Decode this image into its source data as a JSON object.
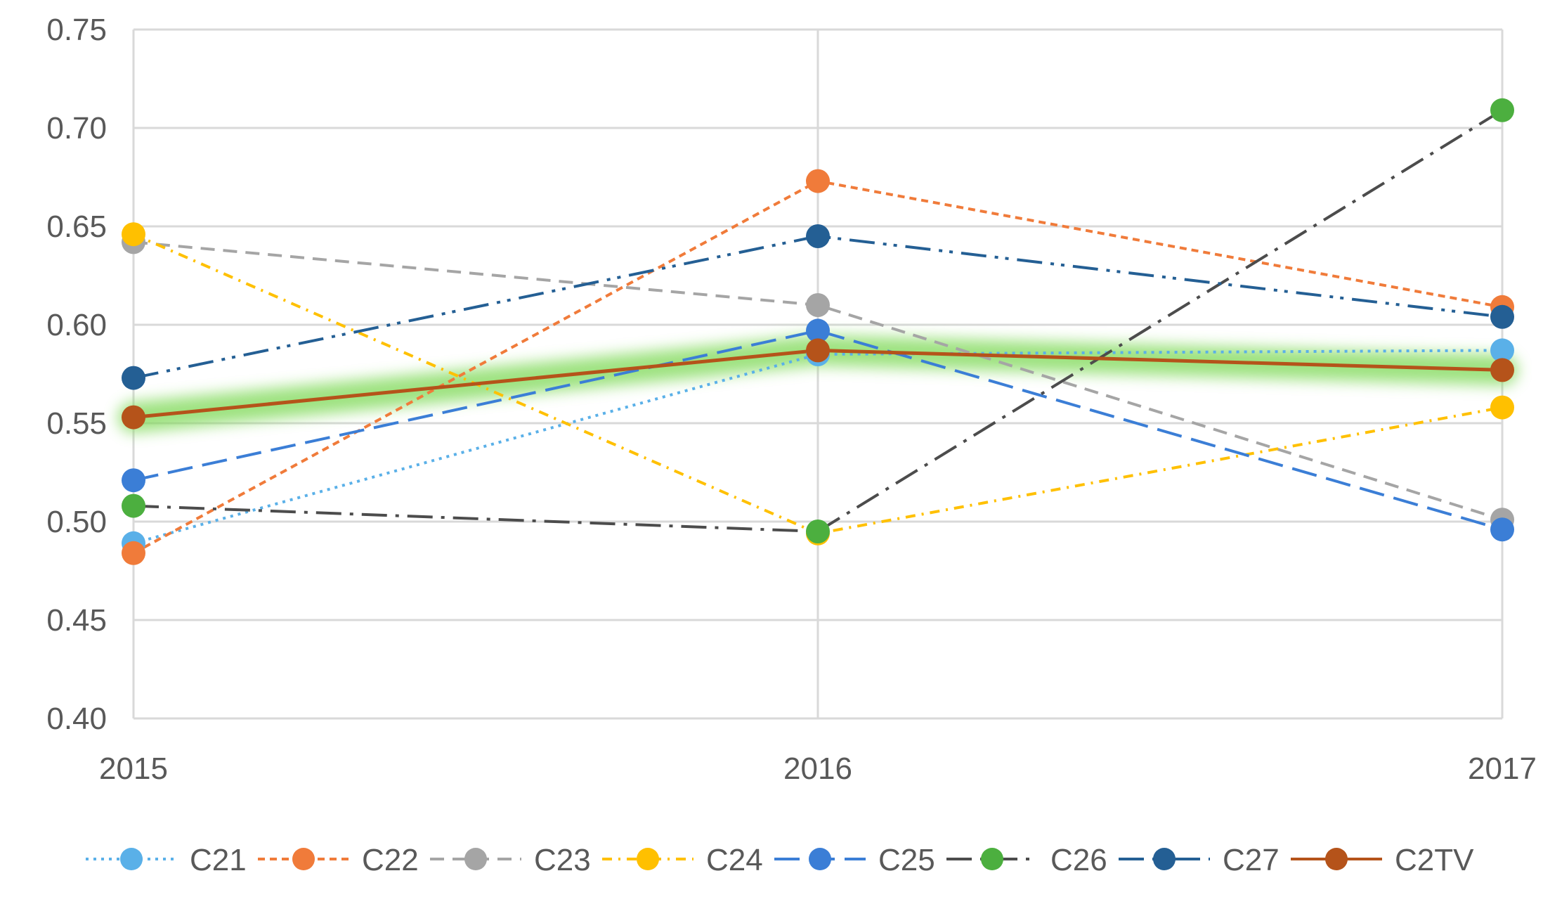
{
  "chart_data": {
    "type": "line",
    "title": "",
    "xlabel": "",
    "ylabel": "",
    "categories": [
      "2015",
      "2016",
      "2017"
    ],
    "ylim": [
      0.4,
      0.75
    ],
    "yticks": [
      "0.40",
      "0.45",
      "0.50",
      "0.55",
      "0.60",
      "0.65",
      "0.70",
      "0.75"
    ],
    "grid": true,
    "legend_position": "bottom",
    "series": [
      {
        "name": "C21",
        "values": [
          0.489,
          0.585,
          0.587
        ],
        "color": "#5ab0e8",
        "dash": "dot"
      },
      {
        "name": "C22",
        "values": [
          0.484,
          0.673,
          0.609
        ],
        "color": "#f07b3a",
        "dash": "short-dash"
      },
      {
        "name": "C23",
        "values": [
          0.642,
          0.61,
          0.501
        ],
        "color": "#a5a5a5",
        "dash": "dash"
      },
      {
        "name": "C24",
        "values": [
          0.646,
          0.494,
          0.558
        ],
        "color": "#ffc000",
        "dash": "dash-dot"
      },
      {
        "name": "C25",
        "values": [
          0.521,
          0.597,
          0.496
        ],
        "color": "#3b7ed6",
        "dash": "long-dash"
      },
      {
        "name": "C26",
        "values": [
          0.508,
          0.495,
          0.709
        ],
        "color": "#4c4c4c",
        "marker_color": "#4caf3f",
        "dash": "long-dash-dot"
      },
      {
        "name": "C27",
        "values": [
          0.573,
          0.645,
          0.604
        ],
        "color": "#245f94",
        "dash": "long-dash-dot-dot"
      },
      {
        "name": "C2TV",
        "values": [
          0.553,
          0.587,
          0.577
        ],
        "color": "#b5531a",
        "dash": "solid",
        "highlight": "#7ed957"
      }
    ]
  }
}
